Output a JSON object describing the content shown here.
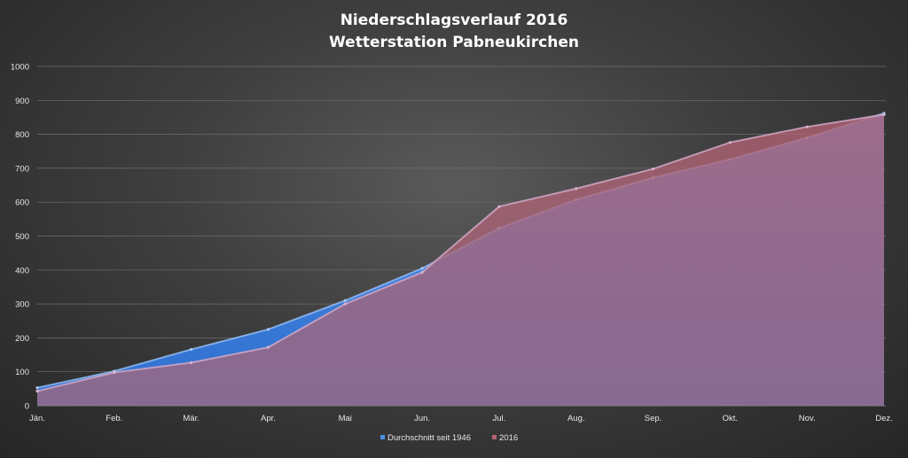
{
  "chart_data": {
    "type": "area",
    "title": "Niederschlagsverlauf 2016",
    "subtitle": "Wetterstation Pabneukirchen",
    "categories": [
      "Jän.",
      "Feb.",
      "Mär.",
      "Apr.",
      "Mai",
      "Jun.",
      "Jul.",
      "Aug.",
      "Sep.",
      "Okt.",
      "Nov.",
      "Dez."
    ],
    "ylim": [
      0,
      1000
    ],
    "yticks": [
      0,
      100,
      200,
      300,
      400,
      500,
      600,
      700,
      800,
      900,
      1000
    ],
    "grid": true,
    "legend_position": "bottom",
    "series": [
      {
        "name": "Durchschnitt seit 1946",
        "color": "#3b7fd9",
        "values": [
          53,
          102,
          166,
          225,
          310,
          405,
          523,
          607,
          672,
          726,
          790,
          862
        ]
      },
      {
        "name": "2016",
        "color": "#a85a66",
        "values": [
          43,
          98,
          127,
          172,
          300,
          393,
          587,
          640,
          698,
          776,
          822,
          858
        ]
      }
    ]
  }
}
